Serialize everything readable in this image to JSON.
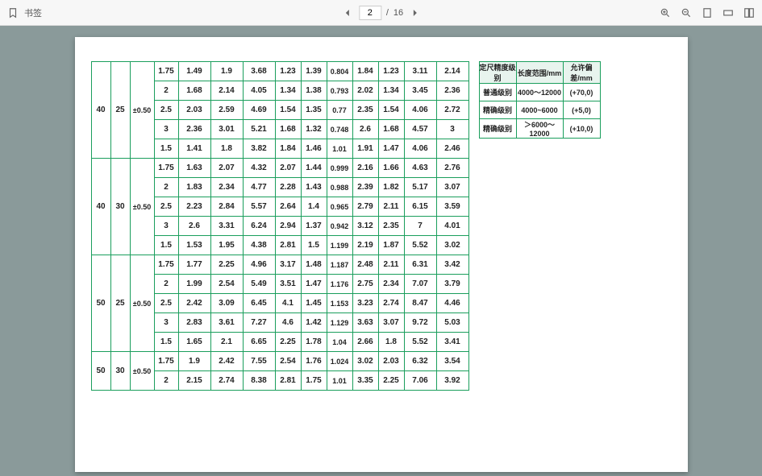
{
  "toolbar": {
    "bookmark_label": "书签",
    "page_current": "2",
    "page_sep": "/",
    "page_total": "16"
  },
  "main_table": {
    "groups": [
      {
        "a": "40",
        "b": "25",
        "c": "±0.50",
        "rows": [
          [
            "1.75",
            "1.49",
            "1.9",
            "3.68",
            "1.23",
            "1.39",
            "0.804",
            "1.84",
            "1.23",
            "3.11",
            "2.14"
          ],
          [
            "2",
            "1.68",
            "2.14",
            "4.05",
            "1.34",
            "1.38",
            "0.793",
            "2.02",
            "1.34",
            "3.45",
            "2.36"
          ],
          [
            "2.5",
            "2.03",
            "2.59",
            "4.69",
            "1.54",
            "1.35",
            "0.77",
            "2.35",
            "1.54",
            "4.06",
            "2.72"
          ],
          [
            "3",
            "2.36",
            "3.01",
            "5.21",
            "1.68",
            "1.32",
            "0.748",
            "2.6",
            "1.68",
            "4.57",
            "3"
          ],
          [
            "1.5",
            "1.41",
            "1.8",
            "3.82",
            "1.84",
            "1.46",
            "1.01",
            "1.91",
            "1.47",
            "4.06",
            "2.46"
          ]
        ]
      },
      {
        "a": "40",
        "b": "30",
        "c": "±0.50",
        "rows": [
          [
            "1.75",
            "1.63",
            "2.07",
            "4.32",
            "2.07",
            "1.44",
            "0.999",
            "2.16",
            "1.66",
            "4.63",
            "2.76"
          ],
          [
            "2",
            "1.83",
            "2.34",
            "4.77",
            "2.28",
            "1.43",
            "0.988",
            "2.39",
            "1.82",
            "5.17",
            "3.07"
          ],
          [
            "2.5",
            "2.23",
            "2.84",
            "5.57",
            "2.64",
            "1.4",
            "0.965",
            "2.79",
            "2.11",
            "6.15",
            "3.59"
          ],
          [
            "3",
            "2.6",
            "3.31",
            "6.24",
            "2.94",
            "1.37",
            "0.942",
            "3.12",
            "2.35",
            "7",
            "4.01"
          ],
          [
            "1.5",
            "1.53",
            "1.95",
            "4.38",
            "2.81",
            "1.5",
            "1.199",
            "2.19",
            "1.87",
            "5.52",
            "3.02"
          ]
        ]
      },
      {
        "a": "50",
        "b": "25",
        "c": "±0.50",
        "rows": [
          [
            "1.75",
            "1.77",
            "2.25",
            "4.96",
            "3.17",
            "1.48",
            "1.187",
            "2.48",
            "2.11",
            "6.31",
            "3.42"
          ],
          [
            "2",
            "1.99",
            "2.54",
            "5.49",
            "3.51",
            "1.47",
            "1.176",
            "2.75",
            "2.34",
            "7.07",
            "3.79"
          ],
          [
            "2.5",
            "2.42",
            "3.09",
            "6.45",
            "4.1",
            "1.45",
            "1.153",
            "3.23",
            "2.74",
            "8.47",
            "4.46"
          ],
          [
            "3",
            "2.83",
            "3.61",
            "7.27",
            "4.6",
            "1.42",
            "1.129",
            "3.63",
            "3.07",
            "9.72",
            "5.03"
          ],
          [
            "1.5",
            "1.65",
            "2.1",
            "6.65",
            "2.25",
            "1.78",
            "1.04",
            "2.66",
            "1.8",
            "5.52",
            "3.41"
          ]
        ]
      },
      {
        "a": "50",
        "b": "30",
        "c": "±0.50",
        "rows": [
          [
            "1.75",
            "1.9",
            "2.42",
            "7.55",
            "2.54",
            "1.76",
            "1.024",
            "3.02",
            "2.03",
            "6.32",
            "3.54"
          ],
          [
            "2",
            "2.15",
            "2.74",
            "8.38",
            "2.81",
            "1.75",
            "1.01",
            "3.35",
            "2.25",
            "7.06",
            "3.92"
          ]
        ]
      }
    ]
  },
  "side_table": {
    "headers": [
      "定尺精度级别",
      "长度范围/mm",
      "允许偏差/mm"
    ],
    "rows": [
      [
        "普通级别",
        "4000～12000",
        "(+70,0)"
      ],
      [
        "精确级别",
        "4000~6000",
        "(+5,0)"
      ],
      [
        "精确级别",
        "＞6000～12000",
        "(+10,0)"
      ]
    ]
  }
}
